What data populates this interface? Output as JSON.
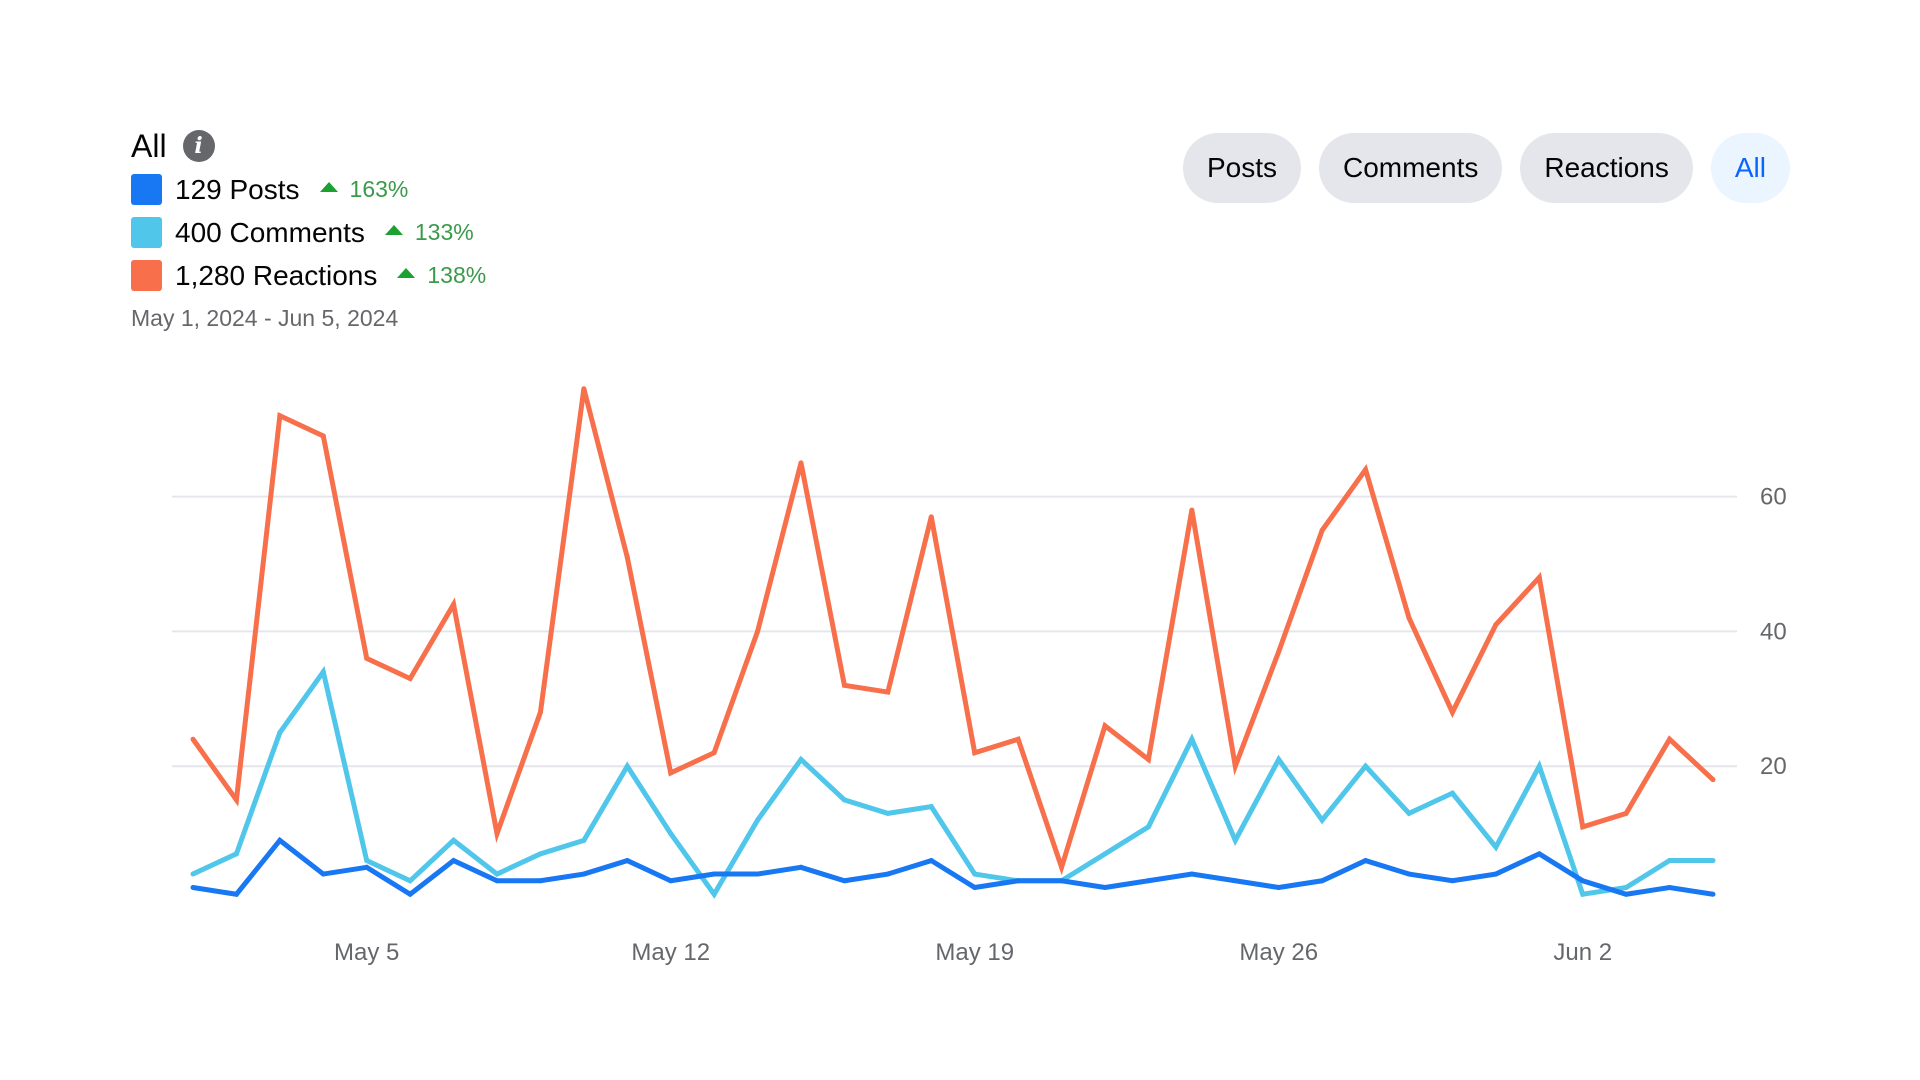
{
  "header": {
    "title": "All",
    "info_icon": "info-icon",
    "legend": [
      {
        "label": "129 Posts",
        "change": "163%",
        "color": "#1877f2"
      },
      {
        "label": "400 Comments",
        "change": "133%",
        "color": "#4fc6ea"
      },
      {
        "label": "1,280 Reactions",
        "change": "138%",
        "color": "#f7704b"
      }
    ],
    "date_range": "May 1, 2024 - Jun 5, 2024"
  },
  "filters": [
    {
      "label": "Posts",
      "active": false
    },
    {
      "label": "Comments",
      "active": false
    },
    {
      "label": "Reactions",
      "active": false
    },
    {
      "label": "All",
      "active": true
    }
  ],
  "chart_data": {
    "type": "line",
    "title": "All",
    "x_start": "May 1",
    "x_end": "Jun 5",
    "x_ticks": [
      {
        "label": "May 5",
        "index": 4
      },
      {
        "label": "May 12",
        "index": 11
      },
      {
        "label": "May 19",
        "index": 18
      },
      {
        "label": "May 26",
        "index": 25
      },
      {
        "label": "Jun 2",
        "index": 32
      }
    ],
    "y_ticks": [
      20,
      40,
      60
    ],
    "ylim": [
      0,
      80
    ],
    "grid": true,
    "series": [
      {
        "name": "Reactions",
        "color": "#f7704b",
        "values": [
          24,
          15,
          72,
          69,
          36,
          33,
          44,
          10,
          28,
          76,
          51,
          19,
          22,
          40,
          65,
          32,
          31,
          57,
          22,
          24,
          5,
          26,
          21,
          58,
          20,
          37,
          55,
          64,
          42,
          28,
          41,
          48,
          11,
          13,
          24,
          18
        ]
      },
      {
        "name": "Comments",
        "color": "#4fc6ea",
        "values": [
          4,
          7,
          25,
          34,
          6,
          3,
          9,
          4,
          7,
          9,
          20,
          10,
          1,
          12,
          21,
          15,
          13,
          14,
          4,
          3,
          3,
          7,
          11,
          24,
          9,
          21,
          12,
          20,
          13,
          16,
          8,
          20,
          1,
          2,
          6,
          6
        ]
      },
      {
        "name": "Posts",
        "color": "#1877f2",
        "values": [
          2,
          1,
          9,
          4,
          5,
          1,
          6,
          3,
          3,
          4,
          6,
          3,
          4,
          4,
          5,
          3,
          4,
          6,
          2,
          3,
          3,
          2,
          3,
          4,
          3,
          2,
          3,
          6,
          4,
          3,
          4,
          7,
          3,
          1,
          2,
          1
        ]
      }
    ]
  }
}
